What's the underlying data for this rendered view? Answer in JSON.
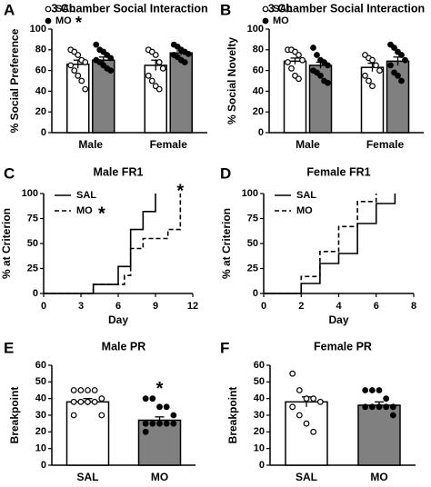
{
  "chart_data": [
    {
      "type": "bar",
      "panel": "A",
      "title": "3 Chamber Social Interaction",
      "ylabel": "% Social Preference",
      "categories": [
        "Male",
        "Female"
      ],
      "series": [
        {
          "name": "SAL",
          "color": "#ffffff",
          "values": [
            66,
            65
          ],
          "errors": [
            4,
            5
          ],
          "points": [
            [
              80,
              78,
              75,
              70,
              68,
              65,
              60,
              55,
              50,
              42
            ],
            [
              80,
              78,
              75,
              68,
              62,
              55,
              50,
              45,
              42
            ]
          ]
        },
        {
          "name": "MO",
          "note": "*",
          "color": "#808080",
          "values": [
            70,
            77
          ],
          "errors": [
            3,
            2
          ],
          "points": [
            [
              85,
              80,
              78,
              75,
              72,
              70,
              68,
              65,
              62,
              60
            ],
            [
              85,
              83,
              80,
              78,
              76,
              75,
              73,
              70,
              68
            ]
          ]
        }
      ],
      "ylim": [
        0,
        100
      ],
      "yticks": [
        0,
        20,
        40,
        60,
        80,
        100
      ]
    },
    {
      "type": "bar",
      "panel": "B",
      "title": "3 Chamber Social Interaction",
      "ylabel": "% Social Novelty",
      "categories": [
        "Male",
        "Female"
      ],
      "series": [
        {
          "name": "SAL",
          "color": "#ffffff",
          "values": [
            69,
            63
          ],
          "errors": [
            3,
            4
          ],
          "points": [
            [
              80,
              80,
              78,
              75,
              70,
              68,
              62,
              55,
              52
            ],
            [
              75,
              72,
              70,
              65,
              60,
              55,
              50,
              45
            ]
          ]
        },
        {
          "name": "MO",
          "color": "#808080",
          "values": [
            65,
            69
          ],
          "errors": [
            3,
            4
          ],
          "points": [
            [
              82,
              75,
              70,
              68,
              65,
              60,
              58,
              55,
              50,
              48
            ],
            [
              85,
              82,
              78,
              75,
              70,
              65,
              58,
              55,
              50
            ]
          ]
        }
      ],
      "ylim": [
        0,
        100
      ],
      "yticks": [
        0,
        20,
        40,
        60,
        80,
        100
      ]
    },
    {
      "type": "step",
      "panel": "C",
      "title": "Male FR1",
      "ylabel": "% at Criterion",
      "xlabel": "Day",
      "series": [
        {
          "name": "SAL",
          "x": [
            0,
            4,
            6,
            7,
            8,
            9
          ],
          "values": [
            0,
            9,
            27,
            64,
            82,
            100
          ]
        },
        {
          "name": "MO",
          "note": "*",
          "x": [
            0,
            4,
            6.5,
            7,
            8,
            10,
            11
          ],
          "values": [
            0,
            9,
            18,
            45,
            55,
            64,
            100
          ]
        }
      ],
      "annotations": [
        "*"
      ],
      "xlim": [
        0,
        12
      ],
      "xticks": [
        0,
        3,
        6,
        9,
        12
      ],
      "ylim": [
        0,
        100
      ],
      "yticks": [
        0,
        25,
        50,
        75,
        100
      ]
    },
    {
      "type": "step",
      "panel": "D",
      "title": "Female FR1",
      "ylabel": "% at Criterion",
      "xlabel": "Day",
      "series": [
        {
          "name": "SAL",
          "x": [
            0,
            2,
            3,
            4,
            5,
            6,
            7
          ],
          "values": [
            0,
            10,
            30,
            40,
            70,
            90,
            100
          ]
        },
        {
          "name": "MO",
          "x": [
            0,
            2,
            3,
            4,
            5,
            6
          ],
          "values": [
            0,
            17,
            42,
            67,
            92,
            100
          ]
        }
      ],
      "xlim": [
        0,
        8
      ],
      "xticks": [
        0,
        2,
        4,
        6,
        8
      ],
      "ylim": [
        0,
        100
      ],
      "yticks": [
        0,
        25,
        50,
        75,
        100
      ]
    },
    {
      "type": "bar",
      "panel": "E",
      "title": "Male PR",
      "ylabel": "Breakpoint",
      "categories": [
        "SAL",
        "MO"
      ],
      "colors": [
        "#ffffff",
        "#808080"
      ],
      "values": [
        38,
        27
      ],
      "errors": [
        2,
        2
      ],
      "points": [
        [
          45,
          45,
          45,
          45,
          40,
          38,
          38,
          38,
          38,
          30,
          30
        ],
        [
          40,
          40,
          35,
          35,
          30,
          25,
          25,
          25,
          25,
          25,
          20
        ]
      ],
      "annotations": [
        "*"
      ],
      "ylim": [
        0,
        60
      ],
      "yticks": [
        0,
        10,
        20,
        30,
        40,
        50,
        60
      ]
    },
    {
      "type": "bar",
      "panel": "F",
      "title": "Female PR",
      "ylabel": "Breakpoint",
      "categories": [
        "SAL",
        "MO"
      ],
      "colors": [
        "#ffffff",
        "#808080"
      ],
      "values": [
        38,
        36
      ],
      "errors": [
        3,
        2
      ],
      "points": [
        [
          55,
          45,
          40,
          40,
          38,
          35,
          30,
          25,
          20
        ],
        [
          45,
          45,
          45,
          40,
          35,
          35,
          35,
          35,
          35,
          30
        ]
      ],
      "ylim": [
        0,
        60
      ],
      "yticks": [
        0,
        10,
        20,
        30,
        40,
        50,
        60
      ]
    }
  ]
}
